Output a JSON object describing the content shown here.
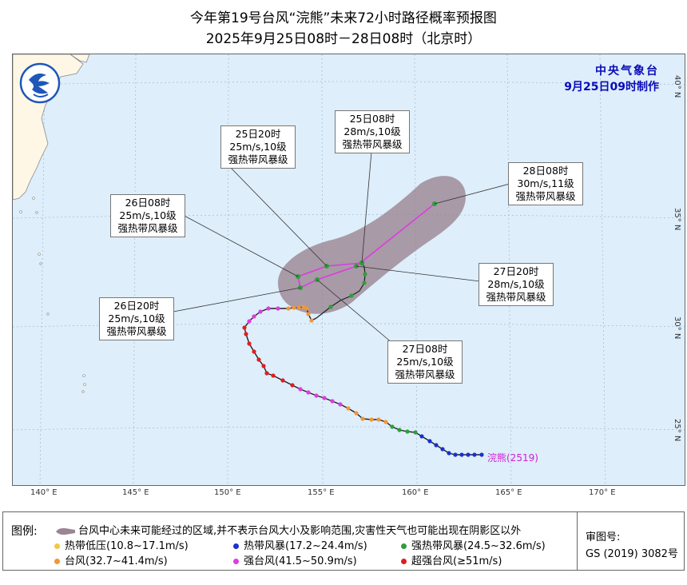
{
  "title": {
    "line1": "今年第19号台风“浣熊”未来72小时路径概率预报图",
    "line2": "2025年9月25日08时－28日08时（北京时）"
  },
  "agency": {
    "name": "中央气象台",
    "issued": "9月25日09时制作"
  },
  "longitude_labels": [
    "140° E",
    "145° E",
    "150° E",
    "155° E",
    "160° E",
    "165° E",
    "170° E"
  ],
  "latitude_labels": [
    "40° N",
    "35° N",
    "30° N",
    "25° N"
  ],
  "forecast_points": [
    {
      "time": "25日08时",
      "wind": "28m/s,10级",
      "grade": "强热带风暴级"
    },
    {
      "time": "25日20时",
      "wind": "25m/s,10级",
      "grade": "强热带风暴级"
    },
    {
      "time": "26日08时",
      "wind": "25m/s,10级",
      "grade": "强热带风暴级"
    },
    {
      "time": "26日20时",
      "wind": "25m/s,10级",
      "grade": "强热带风暴级"
    },
    {
      "time": "27日08时",
      "wind": "25m/s,10级",
      "grade": "强热带风暴级"
    },
    {
      "time": "27日20时",
      "wind": "28m/s,10级",
      "grade": "强热带风暴级"
    },
    {
      "time": "28日08时",
      "wind": "30m/s,11级",
      "grade": "强热带风暴级"
    }
  ],
  "storm_label": "浣熊(2519)",
  "legend": {
    "title": "图例:",
    "cone": "台风中心未来可能经过的区域,并不表示台风大小及影响范围,灾害性天气也可能出现在阴影区以外",
    "items": [
      {
        "label": "热带低压(10.8~17.1m/s)",
        "color": "#f2c744"
      },
      {
        "label": "热带风暴(17.2~24.4m/s)",
        "color": "#1c2fd0"
      },
      {
        "label": "强热带风暴(24.5~32.6m/s)",
        "color": "#2e9e3a"
      },
      {
        "label": "台风(32.7~41.4m/s)",
        "color": "#f2953a"
      },
      {
        "label": "强台风(41.5~50.9m/s)",
        "color": "#e03ae0"
      },
      {
        "label": "超强台风(≥51m/s)",
        "color": "#e01e1e"
      }
    ]
  },
  "review": {
    "label": "审图号:",
    "number": "GS (2019) 3082号"
  }
}
